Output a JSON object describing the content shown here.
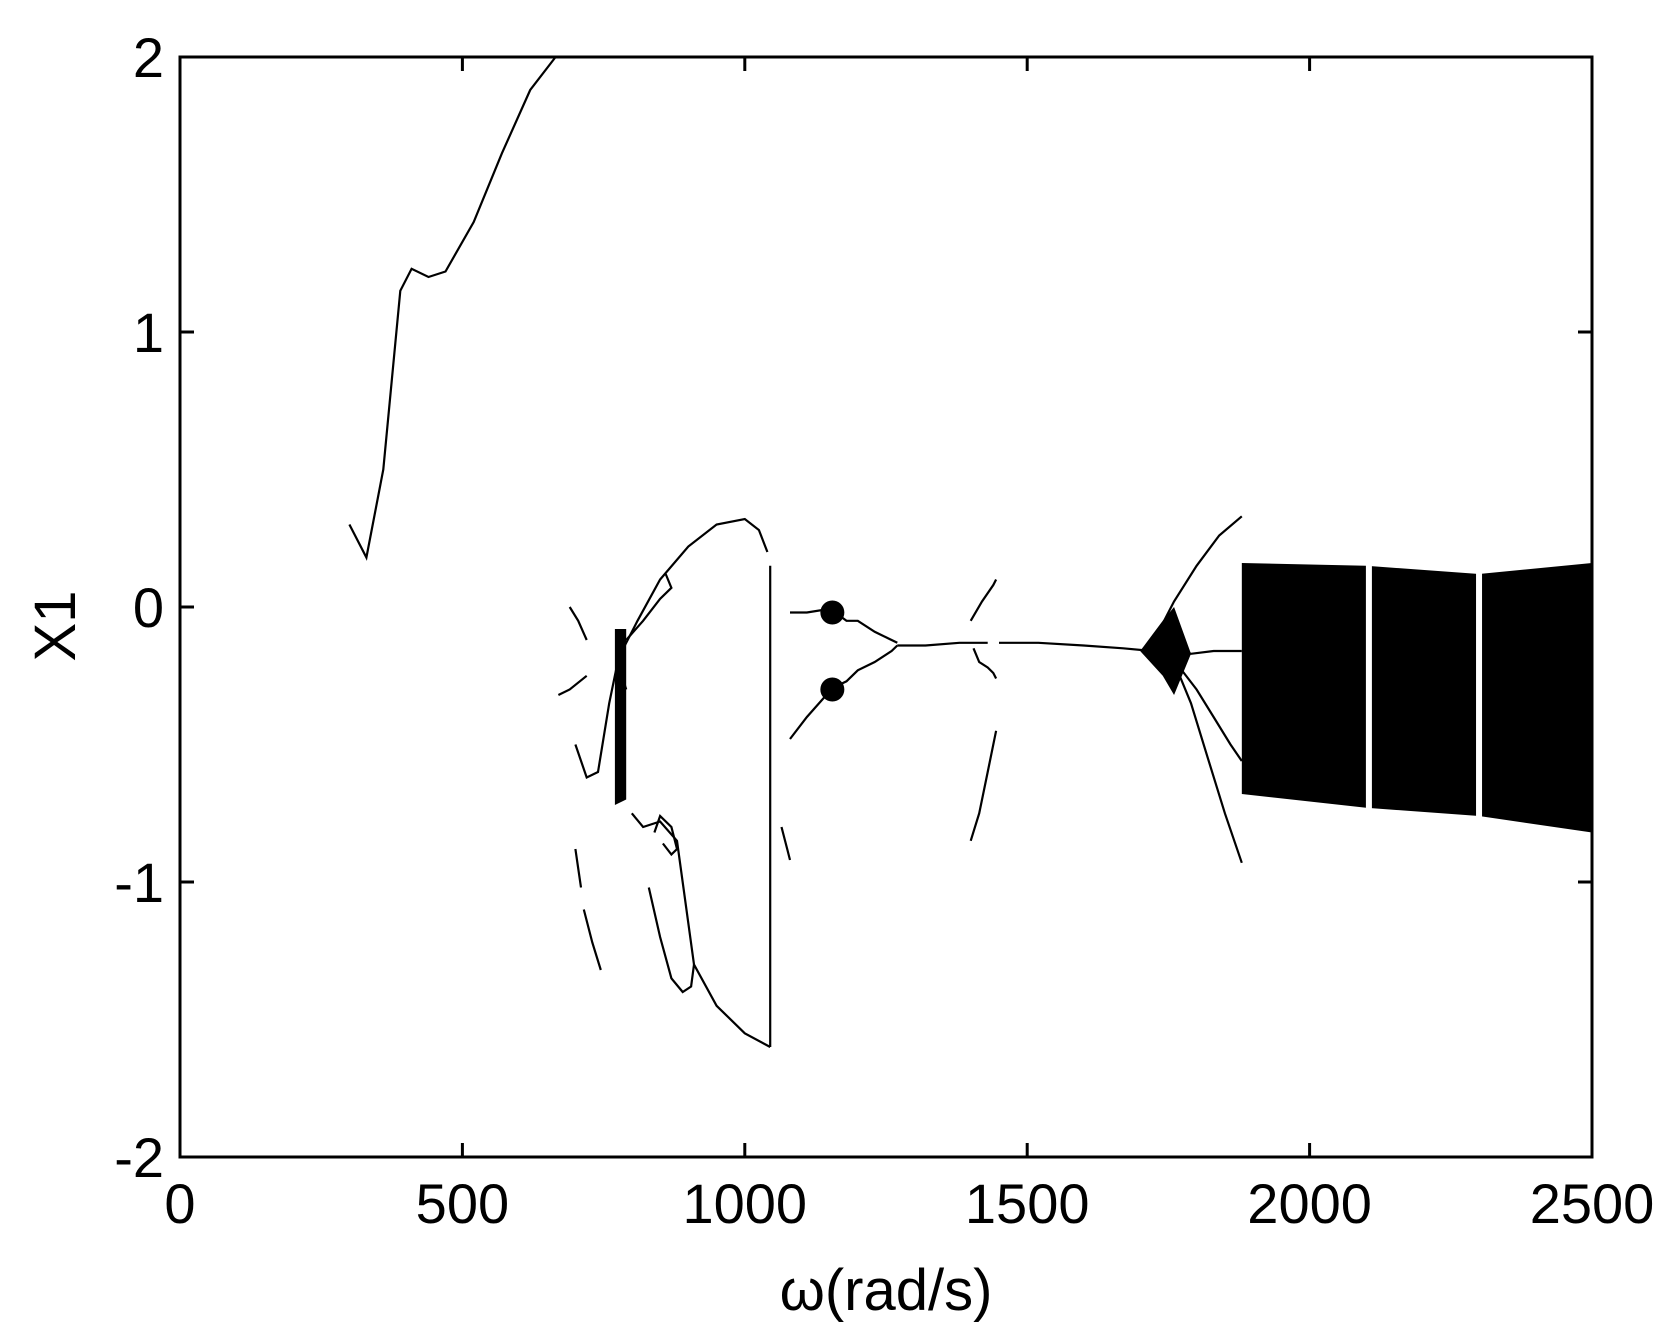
{
  "chart_data": {
    "type": "scatter",
    "title": "",
    "xlabel": "ω(rad/s)",
    "ylabel": "X1",
    "xlim": [
      0,
      2500
    ],
    "ylim": [
      -2,
      2
    ],
    "xticks": [
      0,
      500,
      1000,
      1500,
      2000,
      2500
    ],
    "yticks": [
      -2,
      -1,
      0,
      1,
      2
    ],
    "xtick_labels": [
      "0",
      "500",
      "1000",
      "1500",
      "2000",
      "2500"
    ],
    "ytick_labels": [
      "-2",
      "-1",
      "0",
      "1",
      "2"
    ],
    "grid": false,
    "legend": "none",
    "marker_color": "#000000",
    "series": [
      {
        "values": [
          {
            "x": [
              300,
              330,
              360,
              390,
              410,
              440,
              470,
              520,
              570,
              620,
              665
            ],
            "y": [
              0.3,
              0.18,
              0.5,
              1.15,
              1.23,
              1.2,
              1.22,
              1.4,
              1.65,
              1.88,
              2.0
            ]
          },
          {
            "x": [
              690,
              705,
              720
            ],
            "y": [
              0.0,
              -0.05,
              -0.12
            ]
          },
          {
            "x": [
              670,
              690,
              720
            ],
            "y": [
              -0.32,
              -0.3,
              -0.25
            ]
          },
          {
            "x": [
              700,
              720,
              740,
              760,
              775,
              790
            ],
            "y": [
              -0.5,
              -0.62,
              -0.6,
              -0.35,
              -0.2,
              -0.3
            ]
          },
          {
            "x": [
              700,
              705,
              710
            ],
            "y": [
              -0.88,
              -0.95,
              -1.02
            ]
          },
          {
            "x": [
              715,
              730,
              745
            ],
            "y": [
              -1.1,
              -1.22,
              -1.32
            ]
          },
          {
            "x": [
              785,
              810,
              850,
              900,
              950,
              1000,
              1025,
              1040
            ],
            "y": [
              -0.15,
              -0.05,
              0.1,
              0.22,
              0.3,
              0.32,
              0.28,
              0.2
            ]
          },
          {
            "x": [
              790,
              820,
              850,
              870,
              860
            ],
            "y": [
              -0.12,
              -0.05,
              0.03,
              0.07,
              0.12
            ]
          },
          {
            "x": [
              800,
              820,
              850,
              880,
              910,
              950,
              1000,
              1045
            ],
            "y": [
              -0.75,
              -0.8,
              -0.78,
              -0.85,
              -1.3,
              -1.45,
              -1.55,
              -1.6
            ]
          },
          {
            "x": [
              830,
              850,
              870,
              890,
              905,
              910
            ],
            "y": [
              -1.02,
              -1.2,
              -1.35,
              -1.4,
              -1.38,
              -1.3
            ]
          },
          {
            "x": [
              840,
              850,
              870,
              880,
              870,
              855
            ],
            "y": [
              -0.82,
              -0.76,
              -0.8,
              -0.88,
              -0.9,
              -0.86
            ]
          },
          {
            "x": [
              1045,
              1045,
              1045,
              1045,
              1045,
              1045,
              1045
            ],
            "y": [
              0.15,
              -0.2,
              -0.5,
              -0.8,
              -1.1,
              -1.4,
              -1.6
            ]
          },
          {
            "x": [
              1065,
              1075,
              1080
            ],
            "y": [
              -0.8,
              -0.88,
              -0.92
            ]
          },
          {
            "x": [
              1080,
              1110,
              1140,
              1160,
              1180,
              1200,
              1230,
              1250,
              1270
            ],
            "y": [
              -0.02,
              -0.02,
              -0.01,
              -0.02,
              -0.05,
              -0.05,
              -0.09,
              -0.11,
              -0.13
            ]
          },
          {
            "x": [
              1080,
              1110,
              1140,
              1160,
              1180,
              1200,
              1230,
              1260,
              1270
            ],
            "y": [
              -0.48,
              -0.4,
              -0.33,
              -0.29,
              -0.27,
              -0.23,
              -0.2,
              -0.16,
              -0.14
            ]
          },
          {
            "x": [
              1270,
              1320,
              1380,
              1430
            ],
            "y": [
              -0.14,
              -0.14,
              -0.13,
              -0.13
            ]
          },
          {
            "x": [
              1400,
              1420,
              1440,
              1445
            ],
            "y": [
              -0.05,
              0.02,
              0.08,
              0.1
            ]
          },
          {
            "x": [
              1405,
              1415,
              1430,
              1440,
              1445
            ],
            "y": [
              -0.15,
              -0.2,
              -0.22,
              -0.24,
              -0.26
            ]
          },
          {
            "x": [
              1400,
              1415,
              1430,
              1445
            ],
            "y": [
              -0.85,
              -0.75,
              -0.6,
              -0.45
            ]
          },
          {
            "x": [
              1450,
              1520,
              1600,
              1670,
              1720,
              1760
            ],
            "y": [
              -0.13,
              -0.13,
              -0.14,
              -0.15,
              -0.16,
              -0.17
            ]
          },
          {
            "x": [
              1760,
              1790,
              1830,
              1880
            ],
            "y": [
              -0.15,
              -0.17,
              -0.16,
              -0.16
            ]
          },
          {
            "x": [
              1730,
              1760,
              1800,
              1840,
              1880
            ],
            "y": [
              -0.1,
              0.02,
              0.15,
              0.26,
              0.33
            ]
          },
          {
            "x": [
              1760,
              1790,
              1820,
              1850,
              1880
            ],
            "y": [
              -0.2,
              -0.35,
              -0.55,
              -0.75,
              -0.93
            ]
          },
          {
            "x": [
              1770,
              1800,
              1830,
              1860,
              1880
            ],
            "y": [
              -0.22,
              -0.3,
              -0.4,
              -0.5,
              -0.56
            ]
          }
        ]
      }
    ],
    "filled_regions": [
      {
        "x": [
          770,
          770,
          790,
          790
        ],
        "y": [
          -0.08,
          -0.72,
          -0.7,
          -0.08
        ]
      },
      {
        "x": [
          1700,
          1740,
          1760,
          1790,
          1760,
          1740
        ],
        "y": [
          -0.16,
          -0.05,
          0.0,
          -0.17,
          -0.32,
          -0.25
        ]
      },
      {
        "x": [
          1880,
          2100,
          2300,
          2500,
          2500,
          2300,
          2100,
          1880
        ],
        "y": [
          0.16,
          0.15,
          0.12,
          0.16,
          -0.82,
          -0.76,
          -0.73,
          -0.68
        ]
      }
    ],
    "blobs": [
      {
        "x": 1155,
        "y": -0.02
      },
      {
        "x": 1155,
        "y": -0.3
      }
    ]
  }
}
